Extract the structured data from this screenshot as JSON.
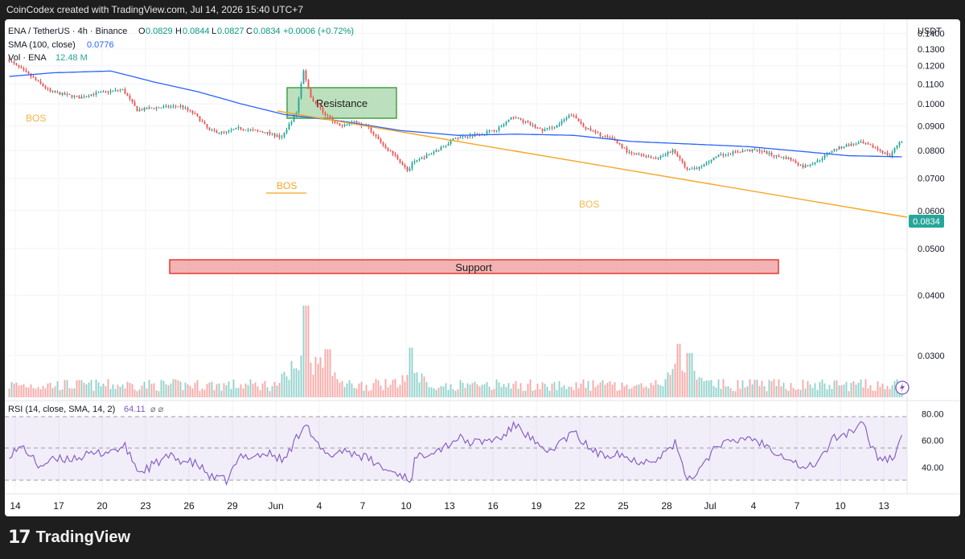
{
  "header": {
    "credit": "CoinCodex created with TradingView.com, Jul 14, 2026 15:40 UTC+7",
    "symbol": "ENA / TetherUS · 4h · Binance",
    "o_label": "O",
    "o_value": "0.0829",
    "h_label": "H",
    "h_value": "0.0844",
    "l_label": "L",
    "l_value": "0.0827",
    "c_label": "C",
    "c_value": "0.0834",
    "change": "+0.0006 (+0.72%)",
    "sma_label": "SMA (100, close)",
    "sma_value": "0.0776",
    "vol_label": "Vol · ENA",
    "vol_value": "12.48 M",
    "currency": "USDT"
  },
  "annotations": {
    "resistance": "Resistance",
    "support": "Support",
    "bos1": "BOS",
    "bos2": "BOS",
    "bos3": "BOS"
  },
  "price_axis": {
    "ticks": [
      "0.1400",
      "0.1300",
      "0.1200",
      "0.1100",
      "0.1000",
      "0.0900",
      "0.0800",
      "0.0700",
      "0.0600",
      "0.0500",
      "0.0400",
      "0.0300"
    ],
    "tick_values": [
      0.14,
      0.13,
      0.12,
      0.11,
      0.1,
      0.09,
      0.08,
      0.07,
      0.06,
      0.05,
      0.04,
      0.03
    ],
    "last_price": "0.0834"
  },
  "rsi": {
    "label": "RSI (14, close, SMA, 14, 2)",
    "value": "64.11",
    "ticks": [
      "80.00",
      "60.00",
      "40.00"
    ],
    "tick_values": [
      80,
      60,
      40
    ],
    "upper": 70,
    "lower": 30
  },
  "x_axis": {
    "labels": [
      "14",
      "17",
      "20",
      "23",
      "26",
      "29",
      "Jun",
      "4",
      "7",
      "10",
      "13",
      "16",
      "19",
      "22",
      "25",
      "28",
      "Jul",
      "4",
      "7",
      "10",
      "13"
    ]
  },
  "footer": {
    "brand": "TradingView"
  },
  "colors": {
    "up": "#26a69a",
    "down": "#ef5350",
    "sma": "#2962ff",
    "trendline": "#f5a623",
    "rsi": "#7e57c2",
    "resistance_fill": "#a5d6a7",
    "support_fill": "#ef9a9a"
  },
  "chart_data": {
    "type": "candlestick",
    "title": "ENA / TetherUS · 4h · Binance",
    "ylabel": "USDT",
    "y_scale": "log",
    "ylim": [
      0.026,
      0.147
    ],
    "x_range": [
      "2026-05-14",
      "2026-07-15"
    ],
    "candles_per_day": 6,
    "price_anchors": [
      [
        "2026-05-14",
        0.124
      ],
      [
        "2026-05-15",
        0.118
      ],
      [
        "2026-05-16",
        0.112
      ],
      [
        "2026-05-17",
        0.106
      ],
      [
        "2026-05-19",
        0.103
      ],
      [
        "2026-05-20",
        0.105
      ],
      [
        "2026-05-22",
        0.107
      ],
      [
        "2026-05-23",
        0.097
      ],
      [
        "2026-05-24",
        0.098
      ],
      [
        "2026-05-26",
        0.099
      ],
      [
        "2026-05-27",
        0.095
      ],
      [
        "2026-05-28",
        0.088
      ],
      [
        "2026-05-29",
        0.087
      ],
      [
        "2026-05-30",
        0.089
      ],
      [
        "2026-06-01",
        0.087
      ],
      [
        "2026-06-02",
        0.085
      ],
      [
        "2026-06-03",
        0.096
      ],
      [
        "2026-06-03T12",
        0.117
      ],
      [
        "2026-06-04",
        0.103
      ],
      [
        "2026-06-05",
        0.095
      ],
      [
        "2026-06-06",
        0.09
      ],
      [
        "2026-06-07",
        0.092
      ],
      [
        "2026-06-08",
        0.089
      ],
      [
        "2026-06-09",
        0.082
      ],
      [
        "2026-06-10",
        0.077
      ],
      [
        "2026-06-10T18",
        0.072
      ],
      [
        "2026-06-11",
        0.075
      ],
      [
        "2026-06-12",
        0.078
      ],
      [
        "2026-06-13",
        0.081
      ],
      [
        "2026-06-14",
        0.085
      ],
      [
        "2026-06-15",
        0.086
      ],
      [
        "2026-06-16",
        0.087
      ],
      [
        "2026-06-17",
        0.089
      ],
      [
        "2026-06-18",
        0.094
      ],
      [
        "2026-06-19",
        0.091
      ],
      [
        "2026-06-20",
        0.088
      ],
      [
        "2026-06-21",
        0.09
      ],
      [
        "2026-06-22",
        0.095
      ],
      [
        "2026-06-23",
        0.089
      ],
      [
        "2026-06-24",
        0.086
      ],
      [
        "2026-06-25",
        0.084
      ],
      [
        "2026-06-26",
        0.079
      ],
      [
        "2026-06-27",
        0.078
      ],
      [
        "2026-06-28",
        0.077
      ],
      [
        "2026-06-29",
        0.08
      ],
      [
        "2026-06-30",
        0.073
      ],
      [
        "2026-07-01",
        0.074
      ],
      [
        "2026-07-02",
        0.078
      ],
      [
        "2026-07-03",
        0.079
      ],
      [
        "2026-07-04",
        0.08
      ],
      [
        "2026-07-05",
        0.08
      ],
      [
        "2026-07-06",
        0.078
      ],
      [
        "2026-07-07",
        0.077
      ],
      [
        "2026-07-08",
        0.074
      ],
      [
        "2026-07-09",
        0.076
      ],
      [
        "2026-07-10",
        0.08
      ],
      [
        "2026-07-11",
        0.082
      ],
      [
        "2026-07-12",
        0.083
      ],
      [
        "2026-07-13",
        0.081
      ],
      [
        "2026-07-14",
        0.0779
      ],
      [
        "2026-07-14T16",
        0.0834
      ]
    ],
    "sma_anchors": [
      [
        "2026-05-14",
        0.114
      ],
      [
        "2026-05-17",
        0.116
      ],
      [
        "2026-05-21",
        0.117
      ],
      [
        "2026-05-24",
        0.111
      ],
      [
        "2026-05-27",
        0.106
      ],
      [
        "2026-05-30",
        0.1
      ],
      [
        "2026-06-02",
        0.095
      ],
      [
        "2026-06-06",
        0.092
      ],
      [
        "2026-06-10",
        0.088
      ],
      [
        "2026-06-14",
        0.086
      ],
      [
        "2026-06-18",
        0.0865
      ],
      [
        "2026-06-22",
        0.086
      ],
      [
        "2026-06-26",
        0.0835
      ],
      [
        "2026-06-30",
        0.0825
      ],
      [
        "2026-07-04",
        0.0815
      ],
      [
        "2026-07-08",
        0.0795
      ],
      [
        "2026-07-11",
        0.078
      ],
      [
        "2026-07-14T16",
        0.0776
      ]
    ],
    "volume_spikes": [
      [
        "2026-06-03T12",
        12.0
      ],
      [
        "2026-06-05",
        6.3
      ],
      [
        "2026-06-10T18",
        6.5
      ],
      [
        "2026-06-29T06",
        7.0
      ],
      [
        "2026-06-30",
        5.8
      ]
    ],
    "rsi_anchors": [
      [
        "2026-05-14",
        50
      ],
      [
        "2026-05-15",
        55
      ],
      [
        "2026-05-16",
        41
      ],
      [
        "2026-05-17",
        45
      ],
      [
        "2026-05-19",
        48
      ],
      [
        "2026-05-20",
        50
      ],
      [
        "2026-05-22",
        55
      ],
      [
        "2026-05-23",
        36
      ],
      [
        "2026-05-25",
        48
      ],
      [
        "2026-05-27",
        42
      ],
      [
        "2026-05-28",
        32
      ],
      [
        "2026-05-29",
        30
      ],
      [
        "2026-05-30",
        48
      ],
      [
        "2026-06-01",
        50
      ],
      [
        "2026-06-02",
        45
      ],
      [
        "2026-06-03",
        65
      ],
      [
        "2026-06-03T12",
        75
      ],
      [
        "2026-06-04",
        60
      ],
      [
        "2026-06-05",
        48
      ],
      [
        "2026-06-06",
        53
      ],
      [
        "2026-06-07",
        50
      ],
      [
        "2026-06-08",
        45
      ],
      [
        "2026-06-09",
        38
      ],
      [
        "2026-06-10",
        35
      ],
      [
        "2026-06-10T18",
        30
      ],
      [
        "2026-06-11",
        45
      ],
      [
        "2026-06-12",
        52
      ],
      [
        "2026-06-13",
        55
      ],
      [
        "2026-06-14",
        62
      ],
      [
        "2026-06-15",
        58
      ],
      [
        "2026-06-16",
        60
      ],
      [
        "2026-06-17",
        62
      ],
      [
        "2026-06-18",
        72
      ],
      [
        "2026-06-19",
        62
      ],
      [
        "2026-06-20",
        50
      ],
      [
        "2026-06-21",
        58
      ],
      [
        "2026-06-22",
        66
      ],
      [
        "2026-06-23",
        55
      ],
      [
        "2026-06-24",
        48
      ],
      [
        "2026-06-25",
        52
      ],
      [
        "2026-06-26",
        45
      ],
      [
        "2026-06-27",
        45
      ],
      [
        "2026-06-28",
        48
      ],
      [
        "2026-06-29",
        58
      ],
      [
        "2026-06-29T12",
        40
      ],
      [
        "2026-06-30",
        30
      ],
      [
        "2026-07-01",
        44
      ],
      [
        "2026-07-02",
        58
      ],
      [
        "2026-07-03",
        58
      ],
      [
        "2026-07-04",
        63
      ],
      [
        "2026-07-05",
        58
      ],
      [
        "2026-07-06",
        52
      ],
      [
        "2026-07-07",
        46
      ],
      [
        "2026-07-08",
        38
      ],
      [
        "2026-07-09",
        46
      ],
      [
        "2026-07-10",
        62
      ],
      [
        "2026-07-11",
        66
      ],
      [
        "2026-07-12",
        72
      ],
      [
        "2026-07-12T12",
        58
      ],
      [
        "2026-07-13",
        48
      ],
      [
        "2026-07-14",
        46
      ],
      [
        "2026-07-14T16",
        64.11
      ]
    ]
  }
}
